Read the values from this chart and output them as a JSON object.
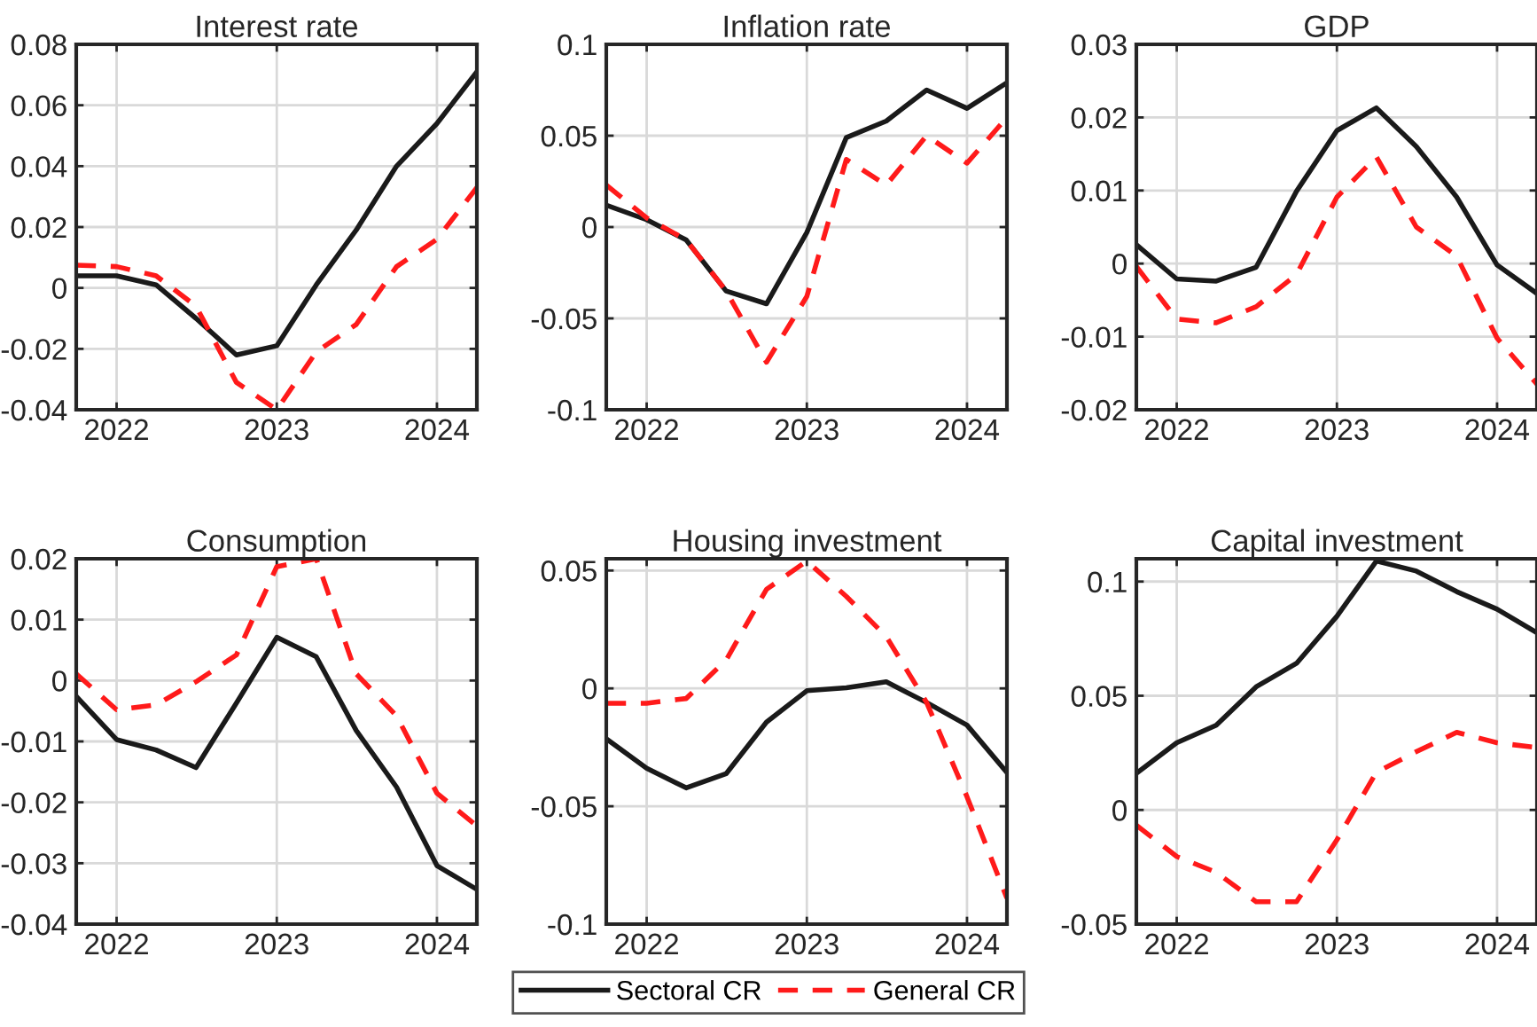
{
  "chart_data": [
    {
      "type": "line",
      "title": "Interest rate",
      "x": [
        "2021-10",
        "2022-01",
        "2022-04",
        "2022-07",
        "2022-10",
        "2023-01",
        "2023-04",
        "2023-07",
        "2023-10",
        "2024-01",
        "2024-04"
      ],
      "xlim": [
        "2021-10",
        "2024-04"
      ],
      "xticks": [
        "2022",
        "2023",
        "2024"
      ],
      "ylim": [
        -0.04,
        0.08
      ],
      "yticks": [
        -0.04,
        -0.02,
        0,
        0.02,
        0.04,
        0.06,
        0.08
      ],
      "grid": true,
      "line_style": "solid",
      "legend": "bottom",
      "series": [
        {
          "name": "Sectoral CR",
          "color": "#1a1a1a",
          "values": [
            0.004,
            0.004,
            0.001,
            -0.01,
            -0.022,
            -0.019,
            0.001,
            0.019,
            0.04,
            0.054,
            0.071
          ]
        },
        {
          "name": "General CR",
          "color": "#ff1a1a",
          "line_style": "dashed",
          "values": [
            0.0075,
            0.007,
            0.004,
            -0.006,
            -0.031,
            -0.04,
            -0.021,
            -0.012,
            0.007,
            0.016,
            0.033
          ]
        }
      ]
    },
    {
      "type": "line",
      "title": "Inflation rate",
      "x": [
        "2021-10",
        "2022-01",
        "2022-04",
        "2022-07",
        "2022-10",
        "2023-01",
        "2023-04",
        "2023-07",
        "2023-10",
        "2024-01",
        "2024-04"
      ],
      "xlim": [
        "2021-10",
        "2024-04"
      ],
      "xticks": [
        "2022",
        "2023",
        "2024"
      ],
      "ylim": [
        -0.1,
        0.1
      ],
      "yticks": [
        -0.1,
        -0.05,
        0,
        0.05,
        0.1
      ],
      "grid": true,
      "line_style": "solid",
      "series": [
        {
          "color": "#1a1a1a",
          "values": [
            0.012,
            0.004,
            -0.007,
            -0.035,
            -0.042,
            -0.003,
            0.049,
            0.058,
            0.075,
            0.065,
            0.079
          ]
        },
        {
          "color": "#ff1a1a",
          "line_style": "dashed",
          "values": [
            0.023,
            0.005,
            -0.007,
            -0.035,
            -0.074,
            -0.038,
            0.037,
            0.023,
            0.05,
            0.035,
            0.06
          ]
        }
      ]
    },
    {
      "type": "line",
      "title": "GDP",
      "x": [
        "2021-10",
        "2022-01",
        "2022-04",
        "2022-07",
        "2022-10",
        "2023-01",
        "2023-04",
        "2023-07",
        "2023-10",
        "2024-01",
        "2024-04"
      ],
      "xlim": [
        "2021-10",
        "2024-04"
      ],
      "xticks": [
        "2022",
        "2023",
        "2024"
      ],
      "ylim": [
        -0.02,
        0.03
      ],
      "yticks": [
        -0.02,
        -0.01,
        0,
        0.01,
        0.02,
        0.03
      ],
      "grid": true,
      "line_style": "solid",
      "series": [
        {
          "color": "#1a1a1a",
          "values": [
            0.0026,
            -0.0021,
            -0.0024,
            -0.0005,
            0.0099,
            0.0182,
            0.0213,
            0.016,
            0.0091,
            -0.0002,
            -0.0041
          ]
        },
        {
          "color": "#ff1a1a",
          "line_style": "dashed",
          "values": [
            -0.0004,
            -0.0076,
            -0.0081,
            -0.0059,
            -0.0015,
            0.0091,
            0.0146,
            0.005,
            0.001,
            -0.0102,
            -0.0165
          ]
        }
      ]
    },
    {
      "type": "line",
      "title": "Consumption",
      "x": [
        "2021-10",
        "2022-01",
        "2022-04",
        "2022-07",
        "2022-10",
        "2023-01",
        "2023-04",
        "2023-07",
        "2023-10",
        "2024-01",
        "2024-04"
      ],
      "xlim": [
        "2021-10",
        "2024-04"
      ],
      "xticks": [
        "2022",
        "2023",
        "2024"
      ],
      "ylim": [
        -0.04,
        0.02
      ],
      "yticks": [
        -0.04,
        -0.03,
        -0.02,
        -0.01,
        0,
        0.01,
        0.02
      ],
      "grid": true,
      "line_style": "solid",
      "series": [
        {
          "color": "#1a1a1a",
          "values": [
            -0.0026,
            -0.0097,
            -0.0114,
            -0.0143,
            -0.0037,
            0.0071,
            0.0039,
            -0.0082,
            -0.0175,
            -0.0304,
            -0.0343
          ]
        },
        {
          "color": "#ff1a1a",
          "line_style": "dashed",
          "values": [
            0.0011,
            -0.0048,
            -0.004,
            -0.0002,
            0.0042,
            0.0187,
            0.02,
            0.0011,
            -0.0058,
            -0.0185,
            -0.0239
          ]
        }
      ]
    },
    {
      "type": "line",
      "title": "Housing investment",
      "x": [
        "2021-10",
        "2022-01",
        "2022-04",
        "2022-07",
        "2022-10",
        "2023-01",
        "2023-04",
        "2023-07",
        "2023-10",
        "2024-01",
        "2024-04"
      ],
      "xlim": [
        "2021-10",
        "2024-04"
      ],
      "xticks": [
        "2022",
        "2023",
        "2024"
      ],
      "ylim": [
        -0.1,
        0.055
      ],
      "yticks": [
        -0.1,
        -0.05,
        0,
        0.05
      ],
      "grid": true,
      "line_style": "solid",
      "series": [
        {
          "color": "#1a1a1a",
          "values": [
            -0.0214,
            -0.0339,
            -0.0422,
            -0.0362,
            -0.0143,
            -0.001,
            0.0003,
            0.0028,
            -0.006,
            -0.0156,
            -0.0357
          ]
        },
        {
          "color": "#ff1a1a",
          "line_style": "dashed",
          "values": [
            -0.0063,
            -0.0063,
            -0.0043,
            0.012,
            0.042,
            0.054,
            0.039,
            0.022,
            -0.006,
            -0.046,
            -0.089
          ]
        }
      ]
    },
    {
      "type": "line",
      "title": "Capital investment",
      "x": [
        "2021-10",
        "2022-01",
        "2022-04",
        "2022-07",
        "2022-10",
        "2023-01",
        "2023-04",
        "2023-07",
        "2023-10",
        "2024-01",
        "2024-04"
      ],
      "xlim": [
        "2021-10",
        "2024-04"
      ],
      "xticks": [
        "2022",
        "2023",
        "2024"
      ],
      "ylim": [
        -0.05,
        0.11
      ],
      "yticks": [
        -0.05,
        0,
        0.05,
        0.1
      ],
      "grid": true,
      "line_style": "solid",
      "series": [
        {
          "color": "#1a1a1a",
          "values": [
            0.016,
            0.0294,
            0.0371,
            0.0539,
            0.0642,
            0.0848,
            0.109,
            0.1046,
            0.0956,
            0.0879,
            0.0776
          ]
        },
        {
          "color": "#ff1a1a",
          "line_style": "dashed",
          "values": [
            -0.0067,
            -0.0204,
            -0.0273,
            -0.0402,
            -0.0402,
            -0.0131,
            0.0165,
            0.0255,
            0.034,
            0.0294,
            0.0273
          ]
        }
      ]
    }
  ]
}
